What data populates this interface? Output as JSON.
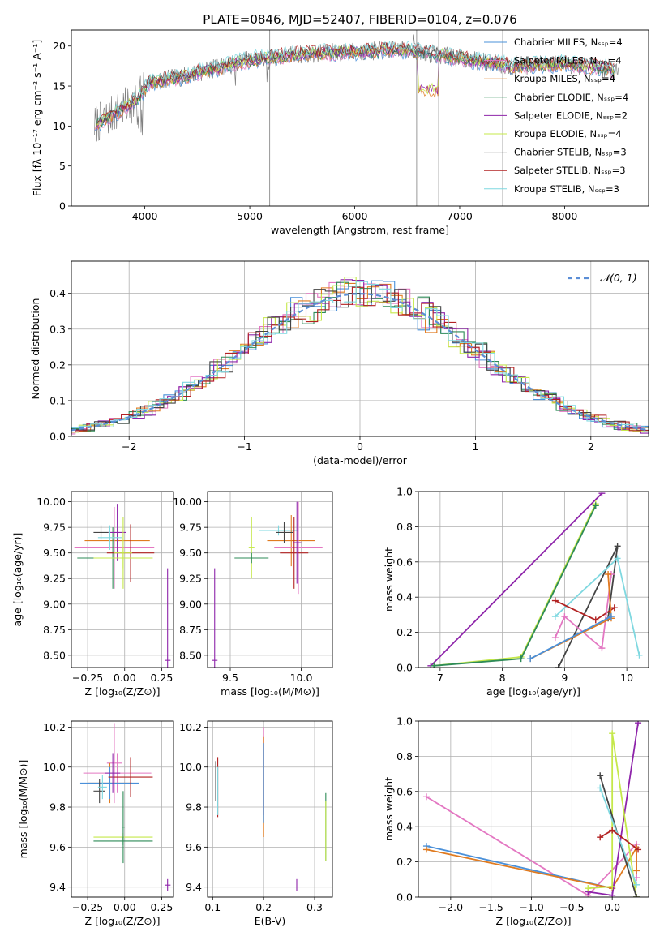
{
  "colors": {
    "chabrier_miles": "#4a90d9",
    "salpeter_miles": "#e377c2",
    "kroupa_miles": "#e07b20",
    "chabrier_elodie": "#2e8b57",
    "salpeter_elodie": "#8e24aa",
    "kroupa_elodie": "#c5e84a",
    "chabrier_stelib": "#444444",
    "salpeter_stelib": "#b22222",
    "kroupa_stelib": "#7fd8e0",
    "normal": "#5b8ed6"
  },
  "chart_data": [
    {
      "id": "spectrum",
      "type": "line",
      "title": "PLATE=0846, MJD=52407, FIBERID=0104, z=0.076",
      "xlabel": "wavelength [Angstrom, rest frame]",
      "ylabel": "Flux [fλ 10⁻¹⁷ erg cm⁻² s⁻¹ A⁻¹]",
      "xlim": [
        3300,
        8800
      ],
      "ylim": [
        0,
        22
      ],
      "xticks": [
        "4000",
        "5000",
        "6000",
        "7000",
        "8000"
      ],
      "yticks": [
        "0",
        "5",
        "10",
        "15",
        "20"
      ],
      "legend_position": "right",
      "series": [
        {
          "name": "Chabrier MILES, N_SSP=4",
          "color_key": "chabrier_miles"
        },
        {
          "name": "Salpeter MILES, N_SSP=4",
          "color_key": "salpeter_miles"
        },
        {
          "name": "Kroupa MILES, N_SSP=4",
          "color_key": "kroupa_miles"
        },
        {
          "name": "Chabrier ELODIE, N_SSP=4",
          "color_key": "chabrier_elodie"
        },
        {
          "name": "Salpeter ELODIE, N_SSP=2",
          "color_key": "salpeter_elodie"
        },
        {
          "name": "Kroupa ELODIE, N_SSP=4",
          "color_key": "kroupa_elodie"
        },
        {
          "name": "Chabrier STELIB, N_SSP=3",
          "color_key": "chabrier_stelib"
        },
        {
          "name": "Salpeter STELIB, N_SSP=3",
          "color_key": "salpeter_stelib"
        },
        {
          "name": "Kroupa STELIB, N_SSP=3",
          "color_key": "kroupa_stelib"
        }
      ],
      "continuum": {
        "x": [
          3500,
          3700,
          3900,
          4050,
          4300,
          4600,
          5000,
          5500,
          6000,
          6500,
          7000,
          7500,
          8000,
          8500
        ],
        "y": [
          10.0,
          11.5,
          13.0,
          15.5,
          16.0,
          17.0,
          18.3,
          19.0,
          19.3,
          19.5,
          18.5,
          17.5,
          17.8,
          17.0
        ]
      }
    },
    {
      "id": "residuals",
      "type": "line",
      "xlabel": "(data-model)/error",
      "ylabel": "Normed distribution",
      "xlim": [
        -2.5,
        2.5
      ],
      "ylim": [
        0,
        0.49
      ],
      "xticks": [
        "−2",
        "−1",
        "0",
        "1",
        "2"
      ],
      "yticks": [
        "0.0",
        "0.1",
        "0.2",
        "0.3",
        "0.4"
      ],
      "legend": "𝒩(0, 1)",
      "legend_position": "top-right"
    },
    {
      "id": "age_vs_Z",
      "type": "scatter",
      "xlabel": "Z [log₁₀(Z/Z⊙)]",
      "ylabel": "age  [log₁₀(age/yr)]",
      "xlim": [
        -0.36,
        0.33
      ],
      "ylim": [
        8.38,
        10.1
      ],
      "xticks": [
        "−0.25",
        "0.00",
        "0.25"
      ],
      "yticks": [
        "8.50",
        "8.75",
        "9.00",
        "9.25",
        "9.50",
        "9.75",
        "10.00"
      ],
      "points": [
        {
          "x": -0.16,
          "y": 9.7,
          "xerr": 0.05,
          "yerr": 0.07,
          "color_key": "chabrier_stelib"
        },
        {
          "x": -0.05,
          "y": 9.62,
          "xerr": 0.22,
          "yerr": 0.12,
          "color_key": "kroupa_miles"
        },
        {
          "x": -0.07,
          "y": 9.55,
          "xerr": 0.27,
          "yerr": 0.4,
          "color_key": "salpeter_miles"
        },
        {
          "x": -0.08,
          "y": 9.45,
          "xerr": 0.24,
          "yerr": 0.3,
          "color_key": "chabrier_elodie"
        },
        {
          "x": 0.04,
          "y": 9.5,
          "xerr": 0.16,
          "yerr": 0.28,
          "color_key": "salpeter_stelib"
        },
        {
          "x": -0.05,
          "y": 9.7,
          "xerr": 0.06,
          "yerr": 0.28,
          "color_key": "salpeter_elodie"
        },
        {
          "x": -0.1,
          "y": 9.65,
          "xerr": 0.08,
          "yerr": 0.12,
          "color_key": "kroupa_stelib"
        },
        {
          "x": -0.01,
          "y": 9.5,
          "xerr": 0.06,
          "yerr": 0.35,
          "color_key": "kroupa_elodie"
        },
        {
          "x": -0.01,
          "y": 9.45,
          "xerr": 0.2,
          "yerr": 0.1,
          "color_key": "kroupa_elodie"
        },
        {
          "x": 0.29,
          "y": 8.45,
          "xerr": 0.02,
          "yerr": 0.9,
          "color_key": "salpeter_elodie"
        }
      ]
    },
    {
      "id": "age_vs_mass",
      "type": "scatter",
      "xlabel": "mass [log₁₀(M/M⊙)]",
      "ylabel": "",
      "xlim": [
        9.34,
        10.22
      ],
      "ylim": [
        8.38,
        10.1
      ],
      "xticks": [
        "9.5",
        "10.0"
      ],
      "yticks": [
        "8.50",
        "8.75",
        "9.00",
        "9.25",
        "9.50",
        "9.75",
        "10.00"
      ],
      "points": [
        {
          "x": 9.84,
          "y": 9.72,
          "xerr": 0.14,
          "yerr": 0.05,
          "color_key": "kroupa_stelib"
        },
        {
          "x": 9.93,
          "y": 9.62,
          "xerr": 0.17,
          "yerr": 0.25,
          "color_key": "kroupa_miles"
        },
        {
          "x": 9.98,
          "y": 9.55,
          "xerr": 0.17,
          "yerr": 0.45,
          "color_key": "salpeter_miles"
        },
        {
          "x": 9.95,
          "y": 9.5,
          "xerr": 0.1,
          "yerr": 0.35,
          "color_key": "salpeter_stelib"
        },
        {
          "x": 9.88,
          "y": 9.7,
          "xerr": 0.06,
          "yerr": 0.1,
          "color_key": "chabrier_stelib"
        },
        {
          "x": 9.97,
          "y": 9.6,
          "xerr": 0.03,
          "yerr": 0.4,
          "color_key": "salpeter_elodie"
        },
        {
          "x": 9.65,
          "y": 9.55,
          "xerr": 0.02,
          "yerr": 0.3,
          "color_key": "kroupa_elodie"
        },
        {
          "x": 9.65,
          "y": 9.45,
          "xerr": 0.12,
          "yerr": 0.05,
          "color_key": "chabrier_elodie"
        },
        {
          "x": 9.39,
          "y": 8.45,
          "xerr": 0.02,
          "yerr": 0.9,
          "color_key": "salpeter_elodie"
        }
      ]
    },
    {
      "id": "massweight_vs_age",
      "type": "line",
      "xlabel": "age  [log₁₀(age/yr)]",
      "ylabel": "mass weight",
      "xlim": [
        6.65,
        10.35
      ],
      "ylim": [
        0,
        1.0
      ],
      "xticks": [
        "7",
        "8",
        "9",
        "10"
      ],
      "yticks": [
        "0.0",
        "0.2",
        "0.4",
        "0.6",
        "0.8",
        "1.0"
      ],
      "series": [
        {
          "color_key": "salpeter_elodie",
          "x": [
            6.85,
            9.6
          ],
          "y": [
            0.01,
            0.99
          ]
        },
        {
          "color_key": "kroupa_elodie",
          "x": [
            6.9,
            8.3,
            9.5
          ],
          "y": [
            0.01,
            0.06,
            0.93
          ]
        },
        {
          "color_key": "chabrier_elodie",
          "x": [
            6.9,
            8.3,
            9.5
          ],
          "y": [
            0.01,
            0.05,
            0.92
          ]
        },
        {
          "color_key": "chabrier_stelib",
          "x": [
            8.9,
            9.85,
            9.7
          ],
          "y": [
            0.0,
            0.69,
            0.28
          ]
        },
        {
          "color_key": "kroupa_stelib",
          "x": [
            8.85,
            9.85,
            10.2
          ],
          "y": [
            0.29,
            0.62,
            0.07
          ]
        },
        {
          "color_key": "salpeter_stelib",
          "x": [
            8.85,
            9.5,
            9.8
          ],
          "y": [
            0.38,
            0.27,
            0.34
          ]
        },
        {
          "color_key": "salpeter_miles",
          "x": [
            8.85,
            9.0,
            9.6,
            9.75
          ],
          "y": [
            0.17,
            0.29,
            0.11,
            0.53
          ]
        },
        {
          "color_key": "kroupa_miles",
          "x": [
            8.45,
            9.75,
            9.7
          ],
          "y": [
            0.05,
            0.28,
            0.53
          ]
        },
        {
          "color_key": "chabrier_miles",
          "x": [
            8.45,
            9.75
          ],
          "y": [
            0.05,
            0.29
          ]
        }
      ]
    },
    {
      "id": "mass_vs_Z",
      "type": "scatter",
      "xlabel": "Z [log₁₀(Z/Z⊙)]",
      "ylabel": "mass [log₁₀(M/M⊙)]",
      "xlim": [
        -0.36,
        0.33
      ],
      "ylim": [
        9.35,
        10.23
      ],
      "xticks": [
        "−0.25",
        "0.00",
        "0.25"
      ],
      "yticks": [
        "9.4",
        "9.6",
        "9.8",
        "10.0",
        "10.2"
      ],
      "points": [
        {
          "x": -0.07,
          "y": 10.02,
          "xerr": 0.05,
          "yerr": 0.2,
          "color_key": "salpeter_miles"
        },
        {
          "x": -0.1,
          "y": 9.92,
          "xerr": 0.15,
          "yerr": 0.1,
          "color_key": "kroupa_miles"
        },
        {
          "x": -0.05,
          "y": 9.97,
          "xerr": 0.23,
          "yerr": 0.1,
          "color_key": "salpeter_miles"
        },
        {
          "x": -0.1,
          "y": 9.92,
          "xerr": 0.2,
          "yerr": 0.08,
          "color_key": "chabrier_miles"
        },
        {
          "x": 0.04,
          "y": 9.95,
          "xerr": 0.15,
          "yerr": 0.1,
          "color_key": "salpeter_stelib"
        },
        {
          "x": -0.08,
          "y": 9.97,
          "xerr": 0.05,
          "yerr": 0.1,
          "color_key": "salpeter_elodie"
        },
        {
          "x": -0.17,
          "y": 9.88,
          "xerr": 0.04,
          "yerr": 0.06,
          "color_key": "chabrier_stelib"
        },
        {
          "x": -0.15,
          "y": 9.9,
          "xerr": 0.03,
          "yerr": 0.06,
          "color_key": "kroupa_stelib"
        },
        {
          "x": -0.01,
          "y": 9.65,
          "xerr": 0.2,
          "yerr": 0.02,
          "color_key": "kroupa_elodie"
        },
        {
          "x": -0.01,
          "y": 9.63,
          "xerr": 0.2,
          "yerr": 0.02,
          "color_key": "chabrier_elodie"
        },
        {
          "x": -0.01,
          "y": 9.7,
          "xerr": 0.01,
          "yerr": 0.18,
          "color_key": "chabrier_elodie"
        },
        {
          "x": 0.29,
          "y": 9.41,
          "xerr": 0.02,
          "yerr": 0.03,
          "color_key": "salpeter_elodie"
        }
      ]
    },
    {
      "id": "mass_vs_ebv",
      "type": "scatter",
      "xlabel": "E(B-V)",
      "ylabel": "",
      "xlim": [
        0.09,
        0.335
      ],
      "ylim": [
        9.35,
        10.23
      ],
      "xticks": [
        "0.1",
        "0.2",
        "0.3"
      ],
      "yticks": [
        "9.4",
        "9.6",
        "9.8",
        "10.0",
        "10.2"
      ],
      "points": [
        {
          "x": 0.11,
          "y": 9.9,
          "xerr": 0.0,
          "yerr": 0.15,
          "color_key": "salpeter_stelib"
        },
        {
          "x": 0.11,
          "y": 9.88,
          "xerr": 0.0,
          "yerr": 0.12,
          "color_key": "kroupa_stelib"
        },
        {
          "x": 0.106,
          "y": 9.93,
          "xerr": 0.0,
          "yerr": 0.1,
          "color_key": "chabrier_stelib"
        },
        {
          "x": 0.2,
          "y": 9.98,
          "xerr": 0.0,
          "yerr": 0.22,
          "color_key": "salpeter_miles"
        },
        {
          "x": 0.2,
          "y": 9.9,
          "xerr": 0.0,
          "yerr": 0.25,
          "color_key": "kroupa_miles"
        },
        {
          "x": 0.2,
          "y": 9.92,
          "xerr": 0.0,
          "yerr": 0.2,
          "color_key": "chabrier_miles"
        },
        {
          "x": 0.265,
          "y": 9.41,
          "xerr": 0.0,
          "yerr": 0.03,
          "color_key": "salpeter_elodie"
        },
        {
          "x": 0.322,
          "y": 9.7,
          "xerr": 0.0,
          "yerr": 0.17,
          "color_key": "chabrier_elodie"
        },
        {
          "x": 0.322,
          "y": 9.68,
          "xerr": 0.0,
          "yerr": 0.15,
          "color_key": "kroupa_elodie"
        }
      ]
    },
    {
      "id": "massweight_vs_Z",
      "type": "line",
      "xlabel": "Z [log₁₀(Z/Z⊙)]",
      "ylabel": "mass weight",
      "xlim": [
        -2.4,
        0.45
      ],
      "ylim": [
        0,
        1.0
      ],
      "xticks": [
        "−2.0",
        "−1.5",
        "−1.0",
        "−0.5",
        "0.0"
      ],
      "yticks": [
        "0.0",
        "0.2",
        "0.4",
        "0.6",
        "0.8",
        "1.0"
      ],
      "series": [
        {
          "color_key": "salpeter_miles",
          "x": [
            -2.3,
            -0.3,
            0.3,
            0.3
          ],
          "y": [
            0.57,
            0.01,
            0.3,
            0.11
          ]
        },
        {
          "color_key": "chabrier_miles",
          "x": [
            -2.3,
            0.0
          ],
          "y": [
            0.29,
            0.05
          ]
        },
        {
          "color_key": "kroupa_miles",
          "x": [
            -2.3,
            0.0,
            0.3,
            0.3
          ],
          "y": [
            0.27,
            0.05,
            0.28,
            0.15
          ]
        },
        {
          "color_key": "salpeter_elodie",
          "x": [
            -0.3,
            0.0,
            0.32
          ],
          "y": [
            0.03,
            0.01,
            0.99
          ]
        },
        {
          "color_key": "kroupa_elodie",
          "x": [
            -0.3,
            0.0,
            0.0,
            0.3
          ],
          "y": [
            0.05,
            0.06,
            0.93,
            0.0
          ]
        },
        {
          "color_key": "chabrier_stelib",
          "x": [
            -0.15,
            0.3
          ],
          "y": [
            0.69,
            0.0
          ]
        },
        {
          "color_key": "kroupa_stelib",
          "x": [
            -0.15,
            0.3
          ],
          "y": [
            0.62,
            0.07
          ]
        },
        {
          "color_key": "salpeter_stelib",
          "x": [
            -0.15,
            0.0,
            0.32
          ],
          "y": [
            0.34,
            0.38,
            0.27
          ]
        }
      ]
    }
  ]
}
